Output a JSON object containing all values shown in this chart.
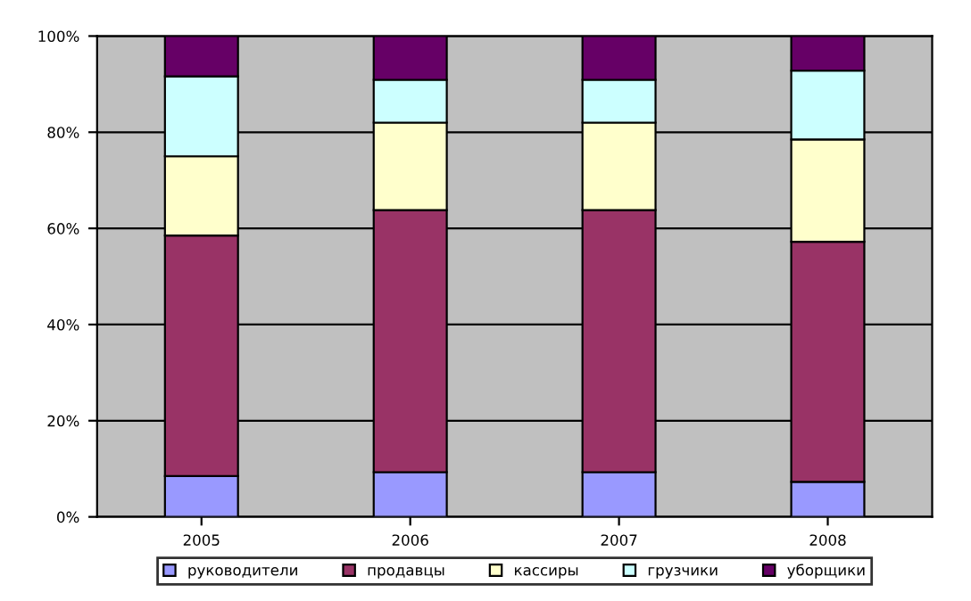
{
  "chart_data": {
    "type": "bar",
    "stacked": true,
    "categories": [
      "2005",
      "2006",
      "2007",
      "2008"
    ],
    "series": [
      {
        "name": "руководители",
        "color": "#9999ff",
        "values": [
          8.5,
          9.3,
          9.3,
          7.3
        ]
      },
      {
        "name": "продавцы",
        "color": "#993366",
        "values": [
          50,
          54.5,
          54.5,
          49.9
        ]
      },
      {
        "name": "кассиры",
        "color": "#ffffcc",
        "values": [
          16.5,
          18.2,
          18.2,
          21.3
        ]
      },
      {
        "name": "грузчики",
        "color": "#ccffff",
        "values": [
          16.6,
          8.9,
          8.9,
          14.3
        ]
      },
      {
        "name": "уборщики",
        "color": "#660066",
        "values": [
          8.4,
          9.1,
          9.1,
          7.2
        ]
      }
    ],
    "ylim": [
      0,
      100
    ],
    "yticks": [
      {
        "value": 0,
        "label": "0%"
      },
      {
        "value": 20,
        "label": "20%"
      },
      {
        "value": 40,
        "label": "40%"
      },
      {
        "value": 60,
        "label": "60%"
      },
      {
        "value": 80,
        "label": "80%"
      },
      {
        "value": 100,
        "label": "100%"
      }
    ],
    "grid": "y",
    "legend": "bottom"
  }
}
